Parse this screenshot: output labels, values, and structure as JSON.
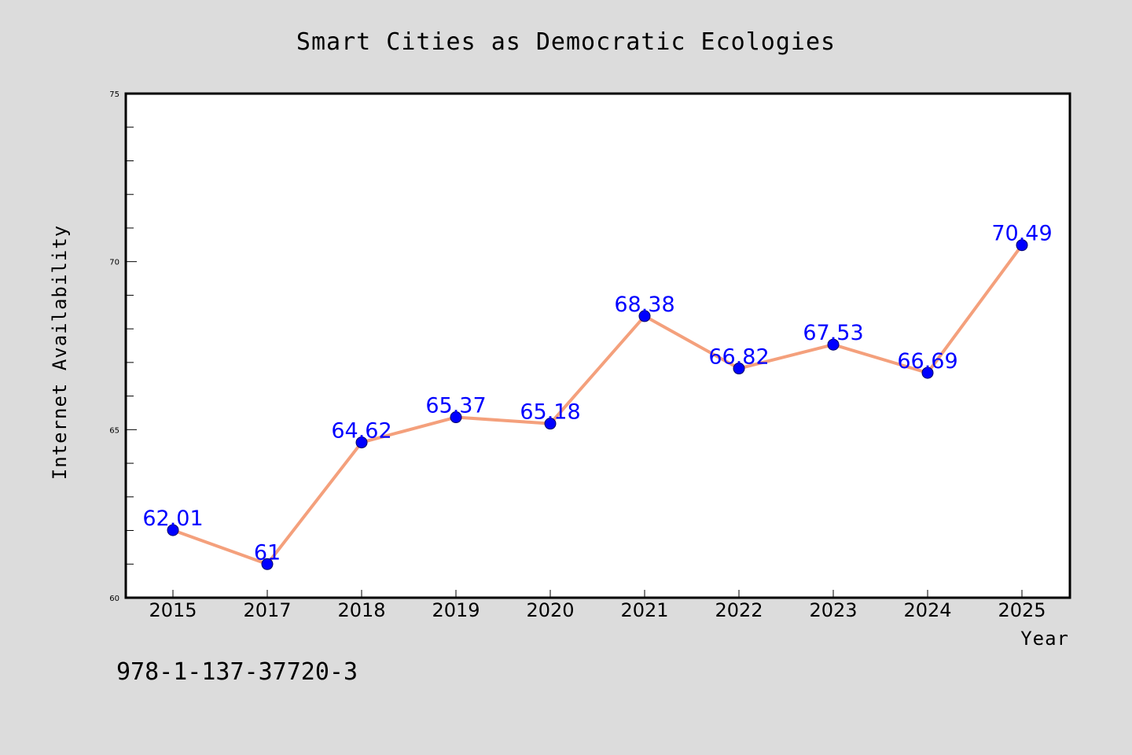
{
  "chart_data": {
    "type": "line",
    "title": "Smart Cities as Democratic Ecologies",
    "xlabel": "Year",
    "ylabel": "Internet Availability",
    "categories": [
      "2015",
      "2017",
      "2018",
      "2019",
      "2020",
      "2021",
      "2022",
      "2023",
      "2024",
      "2025"
    ],
    "series": [
      {
        "values": [
          62.01,
          61,
          64.62,
          65.37,
          65.18,
          68.38,
          66.82,
          67.53,
          66.69,
          70.49
        ],
        "labels": [
          "62.01",
          "61",
          "64.62",
          "65.37",
          "65.18",
          "68.38",
          "66.82",
          "67.53",
          "66.69",
          "70.49"
        ]
      }
    ],
    "ylim": [
      60,
      75
    ],
    "yticks": [
      "60",
      "65",
      "70",
      "75"
    ],
    "grid": false,
    "legend": "none",
    "colors": {
      "line": "#f4a07c",
      "marker": "#0000ff",
      "data_label": "#0000ff",
      "background": "#dcdcdc",
      "plot_background": "#ffffff"
    }
  },
  "footer": {
    "isbn": "978-1-137-37720-3"
  }
}
